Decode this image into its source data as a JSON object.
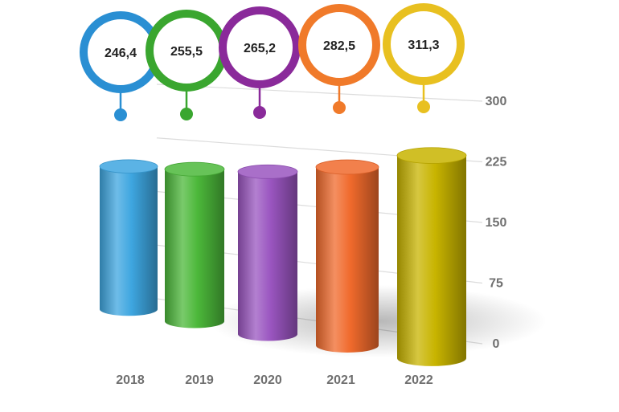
{
  "chart_data": {
    "type": "bar",
    "title": "",
    "xlabel": "",
    "ylabel": "",
    "categories": [
      "2018",
      "2019",
      "2020",
      "2021",
      "2022"
    ],
    "values": [
      246.4,
      255.5,
      265.2,
      282.5,
      311.3
    ],
    "value_labels": [
      "246,4",
      "255,5",
      "265,2",
      "282,5",
      "311,3"
    ],
    "colors": [
      "#3ea6e0",
      "#4cb83a",
      "#9a55c0",
      "#f06a2c",
      "#c8b400"
    ],
    "accent_colors": [
      "#2a8fd3",
      "#3aa62f",
      "#8a2a9a",
      "#f07a2a",
      "#e8c020"
    ],
    "ylim": [
      0,
      300
    ],
    "yticks": [
      0,
      75,
      150,
      225,
      300
    ],
    "ytick_labels": [
      "0",
      "75",
      "150",
      "225",
      "300"
    ],
    "grid": true,
    "style": "3d-cylinder"
  }
}
